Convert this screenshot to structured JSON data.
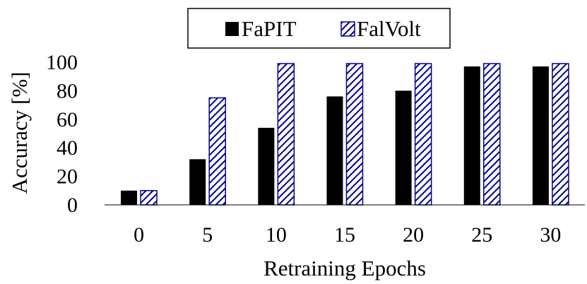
{
  "chart_data": {
    "type": "bar",
    "title": "",
    "xlabel": "Retraining Epochs",
    "ylabel": "Accuracy [%]",
    "categories": [
      "0",
      "5",
      "10",
      "15",
      "20",
      "25",
      "30"
    ],
    "yticks": [
      "0",
      "20",
      "40",
      "60",
      "80",
      "100"
    ],
    "ylim": [
      0,
      100
    ],
    "grid": false,
    "legend_position": "top-center",
    "series": [
      {
        "name": "FaPIT",
        "values": [
          10,
          32,
          54,
          76,
          80,
          97,
          97
        ],
        "color": "#000000",
        "pattern": "solid"
      },
      {
        "name": "FalVolt",
        "values": [
          10,
          75,
          99,
          99,
          99,
          99,
          99
        ],
        "color": "#00008b",
        "pattern": "diagonal-hatch"
      }
    ]
  }
}
